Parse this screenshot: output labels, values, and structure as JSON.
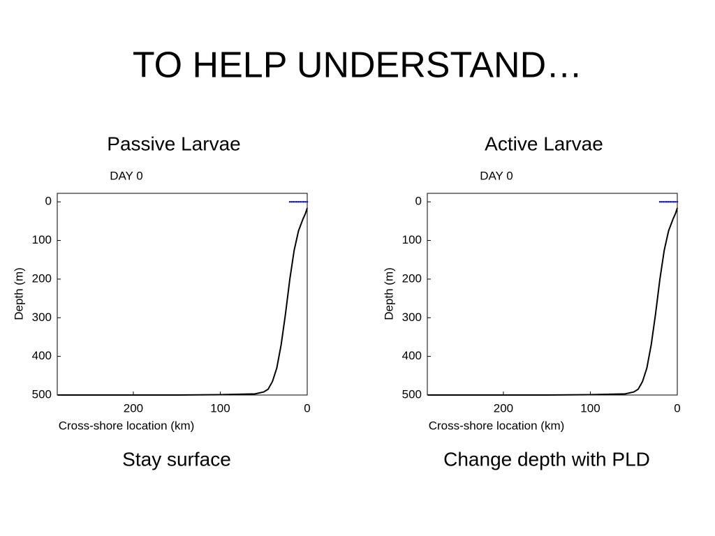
{
  "title": "TO HELP UNDERSTAND…",
  "chart_data": [
    {
      "type": "line",
      "heading": "Passive Larvae",
      "title": "DAY 0",
      "caption": "Stay surface",
      "x_label": "Cross-shore location (km)",
      "y_label": "Depth (m)",
      "xlim": [
        287.5,
        0
      ],
      "ylim": [
        -22,
        500
      ],
      "xticks": [
        200,
        100,
        0
      ],
      "yticks": [
        0,
        100,
        200,
        300,
        400,
        500
      ],
      "series": [
        {
          "type": "line",
          "color": "#000000",
          "x": [
            287,
            250,
            200,
            150,
            100,
            60,
            50,
            45,
            40,
            35,
            30,
            25,
            20,
            15,
            10,
            5,
            2,
            0
          ],
          "values": [
            500,
            500,
            500,
            500,
            499,
            497,
            492,
            485,
            465,
            430,
            370,
            290,
            200,
            125,
            75,
            45,
            30,
            16
          ]
        },
        {
          "type": "scatter",
          "color": "#1a1aa0",
          "x": [
            20,
            18,
            16,
            14,
            12,
            10,
            8,
            6,
            4,
            2,
            0
          ],
          "values": [
            0,
            0,
            0,
            0,
            0,
            0,
            0,
            0,
            0,
            0,
            0
          ]
        }
      ]
    },
    {
      "type": "line",
      "heading": "Active Larvae",
      "title": "DAY 0",
      "caption": "Change depth with PLD",
      "x_label": "Cross-shore location (km)",
      "y_label": "Depth (m)",
      "xlim": [
        287.5,
        0
      ],
      "ylim": [
        -22,
        500
      ],
      "xticks": [
        200,
        100,
        0
      ],
      "yticks": [
        0,
        100,
        200,
        300,
        400,
        500
      ],
      "series": [
        {
          "type": "line",
          "color": "#000000",
          "x": [
            287,
            250,
            200,
            150,
            100,
            60,
            50,
            45,
            40,
            35,
            30,
            25,
            20,
            15,
            10,
            5,
            2,
            0
          ],
          "values": [
            500,
            500,
            500,
            500,
            499,
            497,
            492,
            485,
            465,
            430,
            370,
            290,
            200,
            125,
            75,
            45,
            30,
            16
          ]
        },
        {
          "type": "scatter",
          "color": "#1a1aa0",
          "x": [
            20,
            18,
            16,
            14,
            12,
            10,
            8,
            6,
            4,
            2,
            0
          ],
          "values": [
            0,
            0,
            0,
            0,
            0,
            0,
            0,
            0,
            0,
            0,
            0
          ]
        }
      ]
    }
  ]
}
